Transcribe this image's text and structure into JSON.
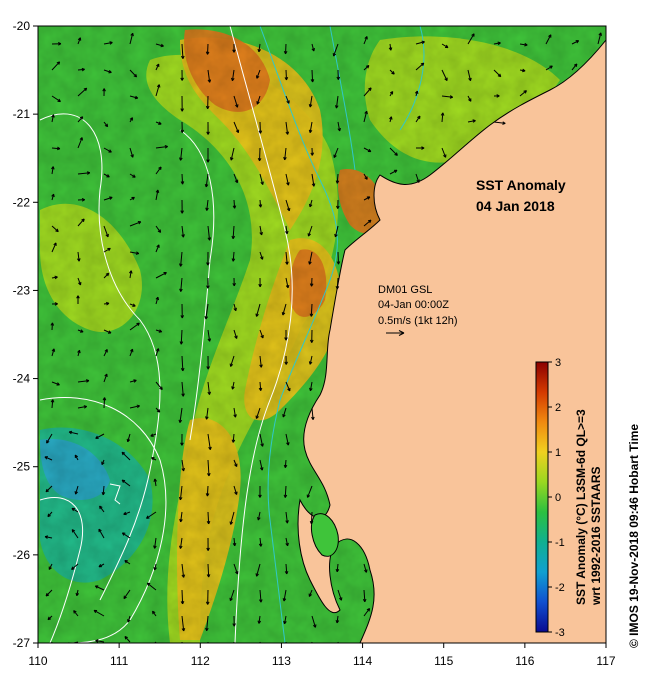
{
  "map": {
    "title_line1": "SST Anomaly",
    "title_line2": "04 Jan 2018",
    "lon_range": [
      110,
      117
    ],
    "lat_range": [
      -27,
      -20
    ],
    "lon_ticks": [
      "110",
      "111",
      "112",
      "113",
      "114",
      "115",
      "116",
      "117"
    ],
    "lat_ticks": [
      "-20",
      "-21",
      "-22",
      "-23",
      "-24",
      "-25",
      "-26",
      "-27"
    ],
    "colors": {
      "land": "#f9c49a",
      "ocean_base": "#3fc43a",
      "warm_low": "#a8dc20",
      "warm_mid": "#e8c21a",
      "warm_high": "#e07a1c",
      "cool": "#1fb890",
      "cold": "#2aa8c8",
      "contour": "#ffffff",
      "bathy": "#30c8c8",
      "arrow": "#000000"
    }
  },
  "current": {
    "line1": "DM01 GSL",
    "line2": "04-Jan 00:00Z",
    "line3": "0.5m/s (1kt 12h)"
  },
  "colorbar": {
    "title_line1": "SST Anomaly (°C) L3SM-6d QL>=3",
    "title_line2": "wrt 1992-2016 SSTAARS",
    "ticks": [
      "3",
      "2",
      "1",
      "0",
      "-1",
      "-2",
      "-3"
    ],
    "stops": [
      "#8b0000",
      "#d43a00",
      "#f08a10",
      "#f0d020",
      "#9ad820",
      "#2cc040",
      "#10b090",
      "#10a0d0",
      "#1050d0",
      "#0a0a90"
    ]
  },
  "credit": "© IMOS 19-Nov-2018 09:46 Hobart Time"
}
